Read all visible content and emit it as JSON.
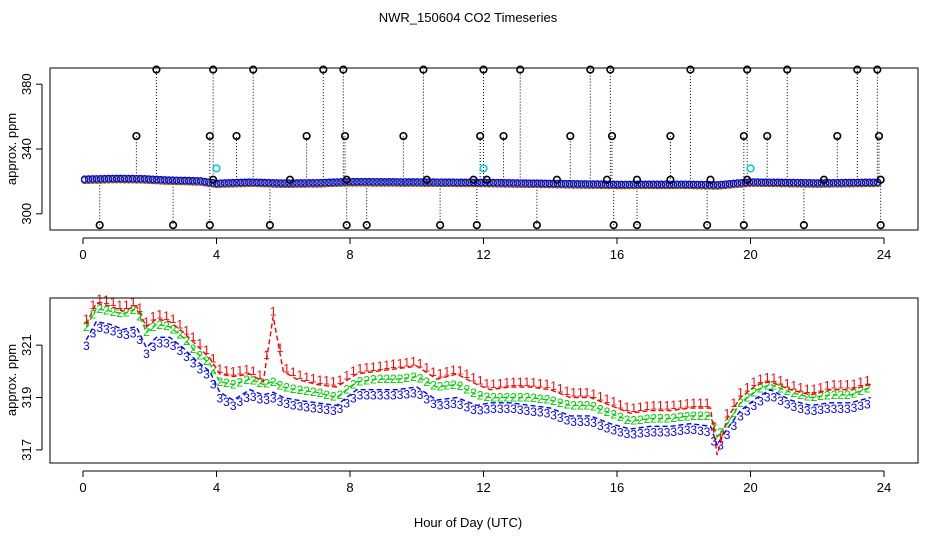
{
  "figure_title": "NWR_150604  CO2 Timeseries",
  "x_axis_label": "Hour of Day (UTC)",
  "colors": {
    "series_1": "#ff0000",
    "series_2": "#00cd00",
    "series_3": "#0000ff",
    "outlier": "#000000",
    "outlier_cyan": "#00cdcd"
  },
  "chart_data": [
    {
      "type": "scatter",
      "ylabel": "approx. ppm",
      "xlim": [
        0,
        24
      ],
      "ylim": [
        290,
        390
      ],
      "x_ticks": [
        "0",
        "4",
        "8",
        "12",
        "16",
        "20",
        "24"
      ],
      "y_ticks": [
        "300",
        "340",
        "380"
      ],
      "grid": false,
      "baseline": [
        [
          0,
          321
        ],
        [
          1,
          321.5
        ],
        [
          1.8,
          321.3
        ],
        [
          2.5,
          320.5
        ],
        [
          3.5,
          320
        ],
        [
          4,
          318.5
        ],
        [
          5,
          319.2
        ],
        [
          6,
          318.6
        ],
        [
          7,
          318.8
        ],
        [
          8,
          319.5
        ],
        [
          10,
          319.3
        ],
        [
          12,
          319
        ],
        [
          14,
          318.4
        ],
        [
          16,
          317.8
        ],
        [
          18,
          317.9
        ],
        [
          19,
          317.5
        ],
        [
          20,
          319.3
        ],
        [
          22,
          318.7
        ],
        [
          24,
          319.2
        ]
      ],
      "high_outliers": [
        [
          1.6,
          348
        ],
        [
          2.2,
          389
        ],
        [
          3.8,
          348
        ],
        [
          3.9,
          389
        ],
        [
          4.6,
          348
        ],
        [
          5.1,
          389
        ],
        [
          6.7,
          348
        ],
        [
          7.2,
          389
        ],
        [
          7.8,
          389
        ],
        [
          7.85,
          348
        ],
        [
          9.6,
          348
        ],
        [
          10.2,
          389
        ],
        [
          11.9,
          348
        ],
        [
          12.0,
          389
        ],
        [
          12.6,
          348
        ],
        [
          13.1,
          389
        ],
        [
          14.6,
          348
        ],
        [
          15.2,
          389
        ],
        [
          15.8,
          389
        ],
        [
          15.85,
          348
        ],
        [
          17.6,
          348
        ],
        [
          18.2,
          389
        ],
        [
          19.8,
          348
        ],
        [
          19.9,
          389
        ],
        [
          20.5,
          348
        ],
        [
          21.1,
          389
        ],
        [
          22.6,
          348
        ],
        [
          23.2,
          389
        ],
        [
          23.8,
          389
        ],
        [
          23.85,
          348
        ]
      ],
      "low_outliers": [
        [
          0.5,
          293
        ],
        [
          2.7,
          293
        ],
        [
          3.8,
          293
        ],
        [
          5.6,
          293
        ],
        [
          7.9,
          293
        ],
        [
          8.5,
          293
        ],
        [
          10.7,
          293
        ],
        [
          11.8,
          293
        ],
        [
          13.6,
          293
        ],
        [
          15.9,
          293
        ],
        [
          16.6,
          293
        ],
        [
          18.7,
          293
        ],
        [
          19.8,
          293
        ],
        [
          21.6,
          293
        ],
        [
          23.9,
          293
        ]
      ],
      "mid_outliers": [
        [
          3.9,
          321
        ],
        [
          6.2,
          321
        ],
        [
          7.9,
          321
        ],
        [
          10.3,
          321
        ],
        [
          11.7,
          321
        ],
        [
          12.1,
          321
        ],
        [
          14.2,
          321
        ],
        [
          15.7,
          321
        ],
        [
          16.6,
          321
        ],
        [
          17.6,
          321
        ],
        [
          18.8,
          321
        ],
        [
          19.9,
          321
        ],
        [
          22.2,
          321
        ],
        [
          23.9,
          321
        ]
      ],
      "cyan_outliers": [
        [
          4.0,
          328
        ],
        [
          12.0,
          328
        ],
        [
          20.0,
          328
        ]
      ]
    },
    {
      "type": "line",
      "ylabel": "approx. ppm",
      "xlim": [
        0,
        24
      ],
      "ylim": [
        316.5,
        322.8
      ],
      "x_ticks": [
        "0",
        "4",
        "8",
        "12",
        "16",
        "20",
        "24"
      ],
      "y_ticks": [
        "317",
        "319",
        "321"
      ],
      "grid": false,
      "marker_labels": [
        "1",
        "2",
        "3"
      ],
      "series_1": [
        [
          0.1,
          321.8
        ],
        [
          0.4,
          322.6
        ],
        [
          0.8,
          322.5
        ],
        [
          1.2,
          322.3
        ],
        [
          1.6,
          322.5
        ],
        [
          1.9,
          321.7
        ],
        [
          2.2,
          322.0
        ],
        [
          2.6,
          321.9
        ],
        [
          3.0,
          321.5
        ],
        [
          3.4,
          321.0
        ],
        [
          3.8,
          320.5
        ],
        [
          4.1,
          319.9
        ],
        [
          4.5,
          319.8
        ],
        [
          5.0,
          319.9
        ],
        [
          5.4,
          319.6
        ],
        [
          5.7,
          322.1
        ],
        [
          6.0,
          320.0
        ],
        [
          6.4,
          319.7
        ],
        [
          7.0,
          319.5
        ],
        [
          7.6,
          319.4
        ],
        [
          8.2,
          319.9
        ],
        [
          8.8,
          320.0
        ],
        [
          9.4,
          320.1
        ],
        [
          10.0,
          320.2
        ],
        [
          10.6,
          319.7
        ],
        [
          11.2,
          319.9
        ],
        [
          11.8,
          319.5
        ],
        [
          12.2,
          319.3
        ],
        [
          12.8,
          319.4
        ],
        [
          13.4,
          319.4
        ],
        [
          14.0,
          319.3
        ],
        [
          14.6,
          319.0
        ],
        [
          15.2,
          319.0
        ],
        [
          15.8,
          318.7
        ],
        [
          16.4,
          318.4
        ],
        [
          17.0,
          318.5
        ],
        [
          17.6,
          318.5
        ],
        [
          18.2,
          318.6
        ],
        [
          18.8,
          318.6
        ],
        [
          19.0,
          316.8
        ],
        [
          19.3,
          318.2
        ],
        [
          19.7,
          319.0
        ],
        [
          20.2,
          319.5
        ],
        [
          20.6,
          319.6
        ],
        [
          21.2,
          319.3
        ],
        [
          21.8,
          319.1
        ],
        [
          22.4,
          319.3
        ],
        [
          23.0,
          319.3
        ],
        [
          23.6,
          319.5
        ]
      ],
      "series_2": [
        [
          0.1,
          321.7
        ],
        [
          0.4,
          322.4
        ],
        [
          0.8,
          322.3
        ],
        [
          1.2,
          322.2
        ],
        [
          1.6,
          322.4
        ],
        [
          1.9,
          321.5
        ],
        [
          2.2,
          321.8
        ],
        [
          2.6,
          321.7
        ],
        [
          3.0,
          321.3
        ],
        [
          3.4,
          320.7
        ],
        [
          3.8,
          320.3
        ],
        [
          4.1,
          319.6
        ],
        [
          4.5,
          319.5
        ],
        [
          5.0,
          319.7
        ],
        [
          5.4,
          319.5
        ],
        [
          5.7,
          319.6
        ],
        [
          6.0,
          319.4
        ],
        [
          6.4,
          319.3
        ],
        [
          7.0,
          319.2
        ],
        [
          7.6,
          319.0
        ],
        [
          8.2,
          319.6
        ],
        [
          8.8,
          319.7
        ],
        [
          9.4,
          319.7
        ],
        [
          10.0,
          319.8
        ],
        [
          10.6,
          319.4
        ],
        [
          11.2,
          319.5
        ],
        [
          11.8,
          319.1
        ],
        [
          12.2,
          319.0
        ],
        [
          12.8,
          319.0
        ],
        [
          13.4,
          319.0
        ],
        [
          14.0,
          318.9
        ],
        [
          14.6,
          318.7
        ],
        [
          15.2,
          318.7
        ],
        [
          15.8,
          318.4
        ],
        [
          16.4,
          318.1
        ],
        [
          17.0,
          318.2
        ],
        [
          17.6,
          318.2
        ],
        [
          18.2,
          318.3
        ],
        [
          18.8,
          318.3
        ],
        [
          19.0,
          317.5
        ],
        [
          19.3,
          318.0
        ],
        [
          19.7,
          318.8
        ],
        [
          20.2,
          319.3
        ],
        [
          20.6,
          319.5
        ],
        [
          21.2,
          319.2
        ],
        [
          21.8,
          319.0
        ],
        [
          22.4,
          319.1
        ],
        [
          23.0,
          319.1
        ],
        [
          23.6,
          319.4
        ]
      ],
      "series_3": [
        [
          0.1,
          321.2
        ],
        [
          0.4,
          321.9
        ],
        [
          0.8,
          321.8
        ],
        [
          1.2,
          321.6
        ],
        [
          1.6,
          321.7
        ],
        [
          1.9,
          320.9
        ],
        [
          2.2,
          321.3
        ],
        [
          2.6,
          321.3
        ],
        [
          3.0,
          320.9
        ],
        [
          3.4,
          320.4
        ],
        [
          3.8,
          320.0
        ],
        [
          4.1,
          319.2
        ],
        [
          4.5,
          318.9
        ],
        [
          5.0,
          319.3
        ],
        [
          5.4,
          319.1
        ],
        [
          5.7,
          319.2
        ],
        [
          6.0,
          319.0
        ],
        [
          6.4,
          318.9
        ],
        [
          7.0,
          318.8
        ],
        [
          7.6,
          318.7
        ],
        [
          8.2,
          319.3
        ],
        [
          8.8,
          319.3
        ],
        [
          9.4,
          319.3
        ],
        [
          10.0,
          319.4
        ],
        [
          10.6,
          318.9
        ],
        [
          11.2,
          319.0
        ],
        [
          11.8,
          318.7
        ],
        [
          12.2,
          318.8
        ],
        [
          12.8,
          318.8
        ],
        [
          13.4,
          318.7
        ],
        [
          14.0,
          318.6
        ],
        [
          14.6,
          318.3
        ],
        [
          15.2,
          318.3
        ],
        [
          15.8,
          318.0
        ],
        [
          16.4,
          317.8
        ],
        [
          17.0,
          317.9
        ],
        [
          17.6,
          317.9
        ],
        [
          18.2,
          318.0
        ],
        [
          18.8,
          317.9
        ],
        [
          19.0,
          317.2
        ],
        [
          19.3,
          317.8
        ],
        [
          19.7,
          318.5
        ],
        [
          20.2,
          319.0
        ],
        [
          20.6,
          319.3
        ],
        [
          21.2,
          318.9
        ],
        [
          21.8,
          318.7
        ],
        [
          22.4,
          318.8
        ],
        [
          23.0,
          318.8
        ],
        [
          23.6,
          319.0
        ]
      ]
    }
  ]
}
